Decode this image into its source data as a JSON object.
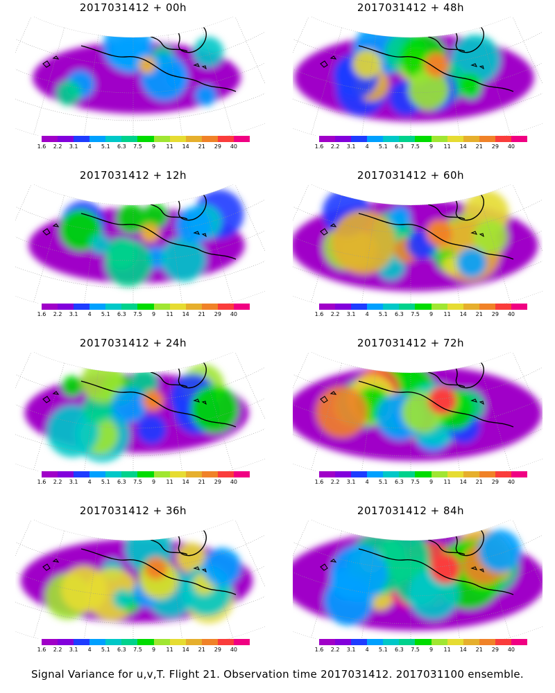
{
  "panels": [
    {
      "title": "2017031412 + 00h",
      "lead": 0
    },
    {
      "title": "2017031412 + 48h",
      "lead": 48
    },
    {
      "title": "2017031412 + 12h",
      "lead": 12
    },
    {
      "title": "2017031412 + 60h",
      "lead": 60
    },
    {
      "title": "2017031412 + 24h",
      "lead": 24
    },
    {
      "title": "2017031412 + 72h",
      "lead": 72
    },
    {
      "title": "2017031412 + 36h",
      "lead": 36
    },
    {
      "title": "2017031412 + 84h",
      "lead": 84
    }
  ],
  "colorbar": {
    "labels": [
      "1.6",
      "2.2",
      "3.1",
      "4",
      "5.1",
      "6.3",
      "7.5",
      "9",
      "11",
      "14",
      "21",
      "29",
      "40"
    ],
    "colors": [
      "#a000c8",
      "#8200dc",
      "#1e3cff",
      "#00a0ff",
      "#00c8c8",
      "#00d28c",
      "#00dc00",
      "#a0e632",
      "#e6dc32",
      "#e6af2d",
      "#f08228",
      "#fa3c3c",
      "#f00082"
    ]
  },
  "footer": "Signal Variance for u,v,T. Flight 21. Observation time 2017031412. 2017031100 ensemble.",
  "map_style": {
    "projection": "polar stereographic sector",
    "land_outline": "#000000",
    "graticule": "dotted grey",
    "missing_fill": "#ffffff"
  }
}
